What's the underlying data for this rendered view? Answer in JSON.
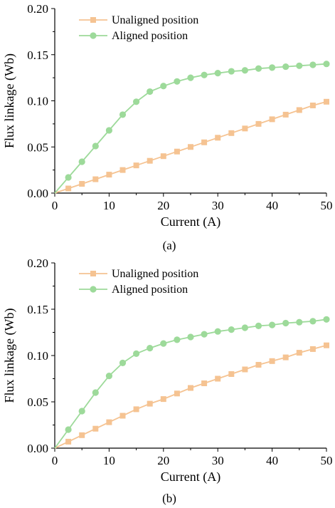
{
  "colors": {
    "unaligned": "#F5C392",
    "aligned": "#9DDA9A",
    "axis": "#000000"
  },
  "chart_data": [
    {
      "type": "line",
      "caption": "(a)",
      "xlabel": "Current (A)",
      "ylabel": "Flux linkage (Wb)",
      "xlim": [
        0,
        50
      ],
      "ylim": [
        0,
        0.2
      ],
      "xticks": [
        "0",
        "10",
        "20",
        "30",
        "40",
        "50"
      ],
      "yticks": [
        "0.00",
        "0.05",
        "0.10",
        "0.15",
        "0.20"
      ],
      "grid": false,
      "legend_position": "top-left",
      "x": [
        0,
        2.5,
        5,
        7.5,
        10,
        12.5,
        15,
        17.5,
        20,
        22.5,
        25,
        27.5,
        30,
        32.5,
        35,
        37.5,
        40,
        42.5,
        45,
        47.5,
        50
      ],
      "series": [
        {
          "name": "Unaligned position",
          "color": "#F5C392",
          "marker": "square",
          "values": [
            0,
            0.005,
            0.01,
            0.015,
            0.02,
            0.025,
            0.03,
            0.035,
            0.04,
            0.045,
            0.05,
            0.055,
            0.06,
            0.065,
            0.07,
            0.075,
            0.08,
            0.085,
            0.09,
            0.095,
            0.099
          ]
        },
        {
          "name": "Aligned position",
          "color": "#9DDA9A",
          "marker": "circle",
          "values": [
            0,
            0.017,
            0.034,
            0.051,
            0.068,
            0.085,
            0.099,
            0.11,
            0.116,
            0.121,
            0.125,
            0.128,
            0.13,
            0.132,
            0.133,
            0.135,
            0.136,
            0.137,
            0.138,
            0.139,
            0.14
          ]
        }
      ]
    },
    {
      "type": "line",
      "caption": "(b)",
      "xlabel": "Current (A)",
      "ylabel": "Flux linkage (Wb)",
      "xlim": [
        0,
        50
      ],
      "ylim": [
        0,
        0.2
      ],
      "xticks": [
        "0",
        "10",
        "20",
        "30",
        "40",
        "50"
      ],
      "yticks": [
        "0.00",
        "0.05",
        "0.10",
        "0.15",
        "0.20"
      ],
      "grid": false,
      "legend_position": "top-left",
      "x": [
        0,
        2.5,
        5,
        7.5,
        10,
        12.5,
        15,
        17.5,
        20,
        22.5,
        25,
        27.5,
        30,
        32.5,
        35,
        37.5,
        40,
        42.5,
        45,
        47.5,
        50
      ],
      "series": [
        {
          "name": "Unaligned position",
          "color": "#F5C392",
          "marker": "square",
          "values": [
            0,
            0.007,
            0.014,
            0.021,
            0.028,
            0.035,
            0.042,
            0.048,
            0.053,
            0.059,
            0.065,
            0.07,
            0.075,
            0.08,
            0.085,
            0.09,
            0.094,
            0.098,
            0.103,
            0.107,
            0.111
          ]
        },
        {
          "name": "Aligned position",
          "color": "#9DDA9A",
          "marker": "circle",
          "values": [
            0,
            0.02,
            0.04,
            0.06,
            0.078,
            0.092,
            0.102,
            0.108,
            0.113,
            0.117,
            0.12,
            0.123,
            0.126,
            0.128,
            0.13,
            0.132,
            0.133,
            0.135,
            0.136,
            0.137,
            0.139
          ]
        }
      ]
    }
  ]
}
